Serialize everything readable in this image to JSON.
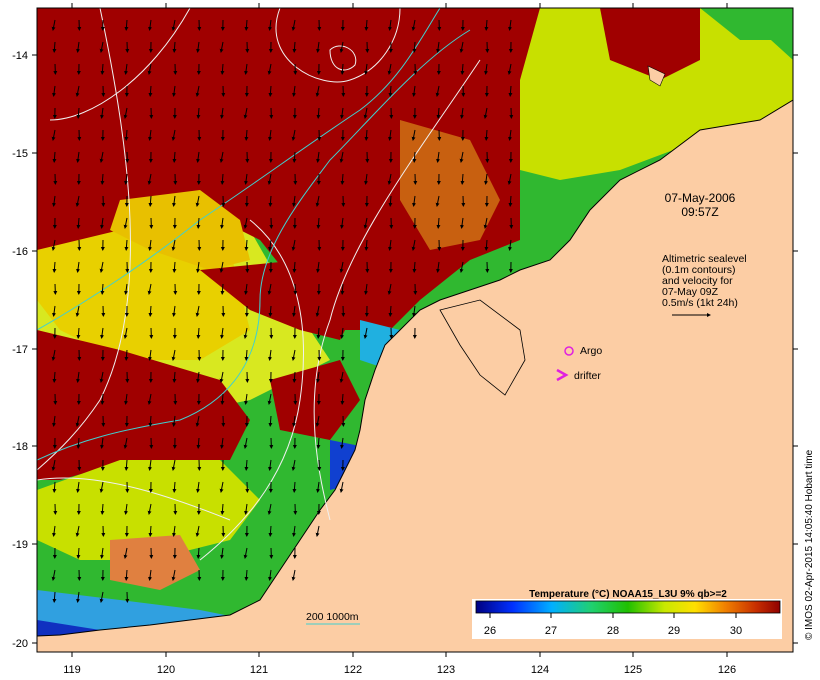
{
  "map": {
    "lat_ticks": [
      "-14",
      "-15",
      "-16",
      "-17",
      "-18",
      "-19",
      "-20"
    ],
    "lon_ticks": [
      "119",
      "120",
      "121",
      "122",
      "123",
      "124",
      "125",
      "126"
    ],
    "date_label": "07-May-2006",
    "time_label": "09:57Z",
    "altimetry_lines": [
      "Altimetric sealevel",
      "(0.1m contours)",
      "and velocity for",
      "07-May 09Z",
      "0.5m/s (1kt 24h)"
    ],
    "argo_label": "Argo",
    "drifter_label": "drifter",
    "isobath_label": "200  1000m",
    "colorbar": {
      "title": "Temperature (°C) NOAA15_L3U 9% qb>=2",
      "ticks": [
        "26",
        "27",
        "28",
        "29",
        "30"
      ],
      "range": [
        25.5,
        30.7
      ]
    },
    "credit": "© IMOS 02-Apr-2015 14:05:40 Hobart time",
    "colors": {
      "land": "#fccda4",
      "hot": "#a00000",
      "warm": "#f0b000",
      "mid": "#c8e000",
      "cool": "#28c028",
      "cold": "#1040d0",
      "argo": "#e020e0",
      "drifter": "#e020e0"
    }
  }
}
